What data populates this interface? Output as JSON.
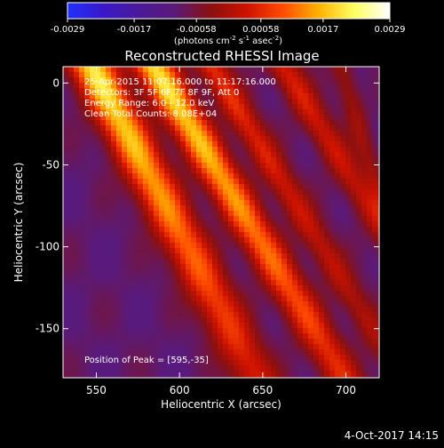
{
  "chart_data": {
    "type": "heatmap",
    "title": "Reconstructed RHESSI Image",
    "xlabel": "Heliocentric X (arcsec)",
    "ylabel": "Heliocentric Y (arcsec)",
    "xlim": [
      530,
      720
    ],
    "ylim": [
      -180,
      10
    ],
    "x_ticks": [
      550,
      600,
      650,
      700
    ],
    "y_ticks": [
      0,
      -50,
      -100,
      -150
    ],
    "colorbar": {
      "unit_label_prefix": "(photons cm",
      "unit_sup_1": "-2",
      "unit_label_mid": " s",
      "unit_sup_2": "-1",
      "unit_label_mid2": " asec",
      "unit_sup_3": "-2",
      "unit_label_suffix": ")",
      "min": -0.0029,
      "max": 0.0029,
      "ticks": [
        "-0.0029",
        "-0.0017",
        "-0.00058",
        "0.00058",
        "0.0017",
        "0.0029"
      ],
      "colors": [
        "#2030ff",
        "#3a18c8",
        "#4a1a9a",
        "#5a1a78",
        "#8a1010",
        "#cc1200",
        "#ff4a00",
        "#ffb000",
        "#ffff60",
        "#ffffff"
      ]
    },
    "annotations": [
      "25-Apr-2015 11:07:16.000 to 11:17:16.000",
      "Detectors: 3F 5F 6F 7F 8F 9F, Att 0",
      "Energy Range: 6.0 - 12.0 keV",
      "Clean    Total Counts: 8.08E+04"
    ],
    "peak_label": "Position of Peak = [595,-35]",
    "peak_position": [
      595,
      -35
    ],
    "ridges": [
      {
        "x_top": 552,
        "x_bottom": 578,
        "slope_x_per_y": 0.26,
        "amp": 0.0029,
        "width": 10
      },
      {
        "x_top": 590,
        "x_bottom": 620,
        "slope_x_per_y": 0.3,
        "amp": 0.0029,
        "width": 9
      },
      {
        "x_top": 625,
        "x_bottom": 655,
        "slope_x_per_y": 0.3,
        "amp": 0.0016,
        "width": 7
      },
      {
        "x_top": 668,
        "x_bottom": 700,
        "slope_x_per_y": 0.3,
        "amp": 0.0014,
        "width": 7
      },
      {
        "x_top": 700,
        "x_bottom": 715,
        "slope_x_per_y": 0.15,
        "amp": 0.0008,
        "width": 5
      }
    ],
    "grid": false
  },
  "footer": {
    "date_stamp": "4-Oct-2017 14:15"
  }
}
